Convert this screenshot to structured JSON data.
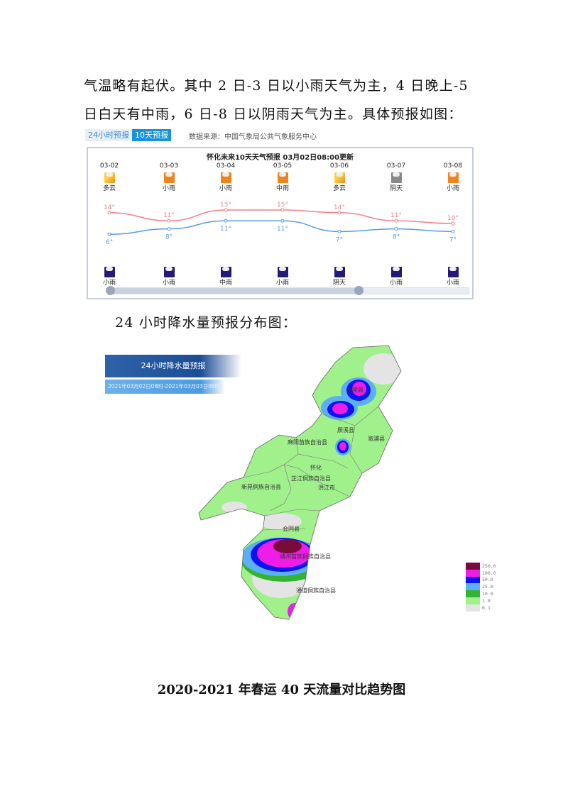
{
  "paragraph": {
    "line1": "气温略有起伏。其中 2 日-3 日以小雨天气为主，4 日晚上-5",
    "line2": "日白天有中雨，6 日-8 日以阴雨天气为主。具体预报如图："
  },
  "widget": {
    "tabs": [
      {
        "label": "24小时预报"
      },
      {
        "label": "10天预报"
      }
    ],
    "source": "数据来源：中国气象局公共气象服务中心",
    "title": "怀化未来10天天气预报   03月02日08:00更新",
    "days": [
      {
        "date": "03-02",
        "day_icon": "partly-cloudy-icon",
        "day_weather": "多云",
        "high": "14°",
        "low": "6°",
        "night_icon": "night-rain-icon",
        "night_weather": "小雨"
      },
      {
        "date": "03-03",
        "day_icon": "light-rain-icon",
        "day_weather": "小雨",
        "high": "11°",
        "low": "8°",
        "night_icon": "night-rain-icon",
        "night_weather": "小雨"
      },
      {
        "date": "03-04",
        "day_icon": "light-rain-icon",
        "day_weather": "小雨",
        "high": "15°",
        "low": "11°",
        "night_icon": "night-rain-icon",
        "night_weather": "中雨"
      },
      {
        "date": "03-05",
        "day_icon": "moderate-rain-icon",
        "day_weather": "中雨",
        "high": "15°",
        "low": "11°",
        "night_icon": "night-rain-icon",
        "night_weather": "小雨"
      },
      {
        "date": "03-06",
        "day_icon": "partly-cloudy-icon",
        "day_weather": "多云",
        "high": "14°",
        "low": "7°",
        "night_icon": "night-overcast-icon",
        "night_weather": "阴天"
      },
      {
        "date": "03-07",
        "day_icon": "overcast-icon",
        "day_weather": "阴天",
        "high": "11°",
        "low": "8°",
        "night_icon": "night-rain-icon",
        "night_weather": "小雨"
      },
      {
        "date": "03-08",
        "day_icon": "light-rain-icon",
        "day_weather": "小雨",
        "high": "10°",
        "low": "7°",
        "night_icon": "night-rain-icon",
        "night_weather": "小雨"
      }
    ],
    "chart_data": {
      "type": "line",
      "categories": [
        "03-02",
        "03-03",
        "03-04",
        "03-05",
        "03-06",
        "03-07",
        "03-08"
      ],
      "series": [
        {
          "values": [
            14,
            11,
            15,
            15,
            14,
            11,
            10
          ],
          "color": "#f0808a"
        },
        {
          "values": [
            6,
            8,
            11,
            11,
            7,
            8,
            7
          ],
          "color": "#5a9be8"
        }
      ]
    }
  },
  "caption": "24 小时降水量预报分布图：",
  "map": {
    "banner_title": "24小时降水量预报",
    "banner_period": "2021年03月02日08时-2021年03月03日08时",
    "labels": [
      "沅陵县",
      "辰溪县",
      "溆浦县",
      "麻阳苗族自治县",
      "怀化",
      "芷江侗族自治县",
      "新晃侗族自治县",
      "洪江市",
      "会同县",
      "靖州苗族侗族自治县",
      "通道侗族自治县"
    ],
    "legend": [
      {
        "value": "250.0",
        "color": "#7a0a3a"
      },
      {
        "value": "100.0",
        "color": "#ee1ee6"
      },
      {
        "value": "50.0",
        "color": "#0a14f0"
      },
      {
        "value": "25.0",
        "color": "#5ab0f0"
      },
      {
        "value": "10.0",
        "color": "#32b432"
      },
      {
        "value": "1.0",
        "color": "#a0f08c"
      },
      {
        "value": "0.1",
        "color": "#e4e4e4"
      }
    ]
  },
  "section_title": "2020-2021 年春运 40 天流量对比趋势图"
}
